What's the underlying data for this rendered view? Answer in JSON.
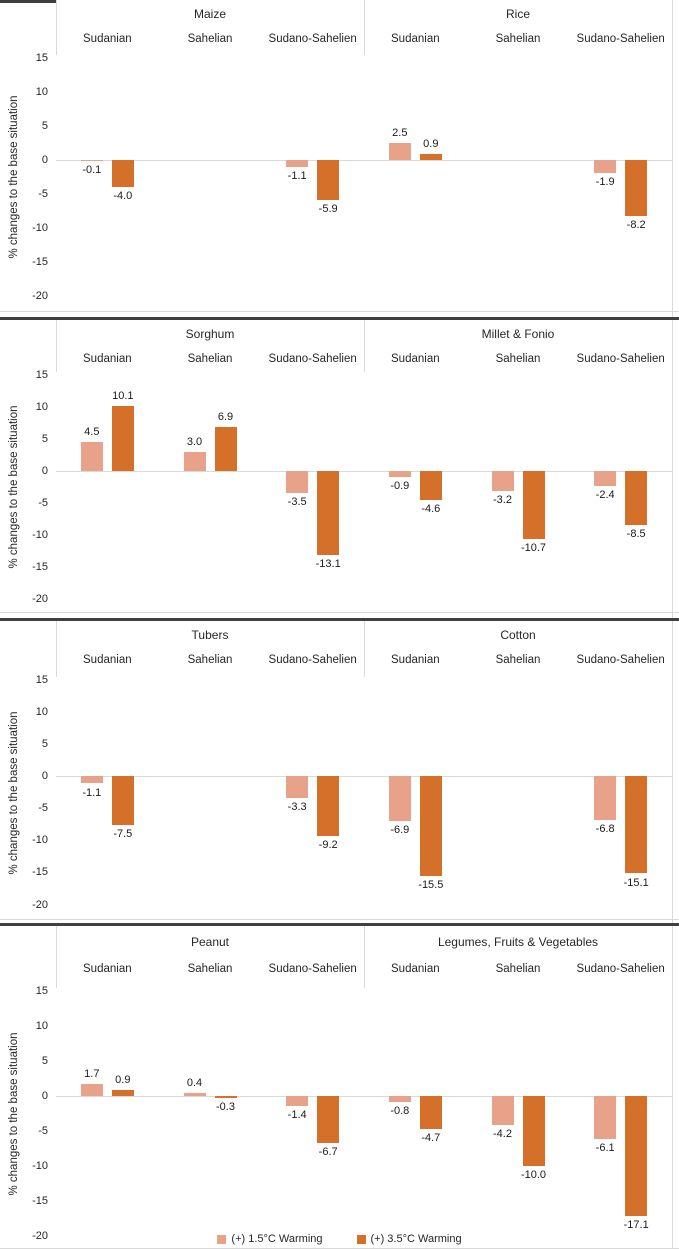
{
  "chart_data": {
    "type": "bar",
    "title": "",
    "ylabel": "% changes to the base situation",
    "ylim": [
      -20,
      15
    ],
    "yticks": [
      15,
      10,
      5,
      0,
      -5,
      -10,
      -15,
      -20
    ],
    "grid": "zero-line-only",
    "legend_position": "bottom-center",
    "regions": [
      "Sudanian",
      "Sahelian",
      "Sudano-Sahelien"
    ],
    "series": [
      {
        "name": "(+) 1.5°C Warming",
        "color": "#e9a28a"
      },
      {
        "name": "(+) 3.5°C Warming",
        "color": "#d4702a"
      }
    ],
    "panels": [
      {
        "groups": [
          {
            "crop": "Maize",
            "regions": [
              "Sudanian",
              "Sahelian",
              "Sudano-Sahelien"
            ],
            "values": [
              [
                -0.1,
                -4.0
              ],
              [
                null,
                null
              ],
              [
                -1.1,
                -5.9
              ]
            ]
          },
          {
            "crop": "Rice",
            "regions": [
              "Sudanian",
              "Sahelian",
              "Sudano-Sahelien"
            ],
            "values": [
              [
                2.5,
                0.9
              ],
              [
                null,
                null
              ],
              [
                -1.9,
                -8.2
              ]
            ]
          }
        ]
      },
      {
        "groups": [
          {
            "crop": "Sorghum",
            "regions": [
              "Sudanian",
              "Sahelian",
              "Sudano-Sahelien"
            ],
            "values": [
              [
                4.5,
                10.1
              ],
              [
                3.0,
                6.9
              ],
              [
                -3.5,
                -13.1
              ]
            ]
          },
          {
            "crop": "Millet & Fonio",
            "regions": [
              "Sudanian",
              "Sahelian",
              "Sudano-Sahelien"
            ],
            "values": [
              [
                -0.9,
                -4.6
              ],
              [
                -3.2,
                -10.7
              ],
              [
                -2.4,
                -8.5
              ]
            ]
          }
        ]
      },
      {
        "groups": [
          {
            "crop": "Tubers",
            "regions": [
              "Sudanian",
              "Sahelian",
              "Sudano-Sahelien"
            ],
            "values": [
              [
                -1.1,
                -7.5
              ],
              [
                null,
                null
              ],
              [
                -3.3,
                -9.2
              ]
            ]
          },
          {
            "crop": "Cotton",
            "regions": [
              "Sudanian",
              "Sahelian",
              "Sudano-Sahelien"
            ],
            "values": [
              [
                -6.9,
                -15.5
              ],
              [
                null,
                null
              ],
              [
                -6.8,
                -15.1
              ]
            ]
          }
        ]
      },
      {
        "groups": [
          {
            "crop": "Peanut",
            "regions": [
              "Sudanian",
              "Sahelian",
              "Sudano-Sahelien"
            ],
            "values": [
              [
                1.7,
                0.9
              ],
              [
                0.4,
                -0.3
              ],
              [
                -1.4,
                -6.7
              ]
            ]
          },
          {
            "crop": "Legumes, Fruits & Vegetables",
            "regions": [
              "Sudanian",
              "Sahelian",
              "Sudano-Sahelien"
            ],
            "values": [
              [
                -0.8,
                -4.7
              ],
              [
                -4.2,
                -10.0
              ],
              [
                -6.1,
                -17.1
              ]
            ]
          }
        ]
      }
    ]
  }
}
